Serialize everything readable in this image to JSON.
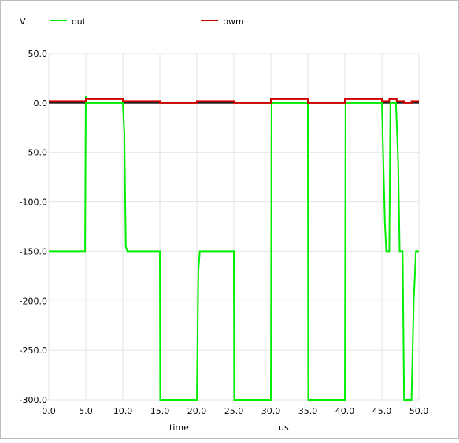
{
  "chart_data": {
    "type": "line",
    "ylabel": "V",
    "xlabel": "time",
    "xunit": "us",
    "xlim": [
      0,
      50
    ],
    "ylim": [
      -300,
      50
    ],
    "xticks": [
      "0.0",
      "5.0",
      "10.0",
      "15.0",
      "20.0",
      "25.0",
      "30.0",
      "35.0",
      "40.0",
      "45.0",
      "50.0"
    ],
    "yticks": [
      "50.0",
      "0.0",
      "-50.0",
      "-100.0",
      "-150.0",
      "-200.0",
      "-250.0",
      "-300.0"
    ],
    "grid": true,
    "legend_position": "top",
    "series": [
      {
        "name": "out",
        "color": "#00ee00",
        "points": [
          [
            0,
            -150
          ],
          [
            4.9,
            -150
          ],
          [
            5.0,
            7
          ],
          [
            5.1,
            0
          ],
          [
            10.0,
            0
          ],
          [
            10.2,
            -30
          ],
          [
            10.4,
            -145
          ],
          [
            10.6,
            -150
          ],
          [
            15.0,
            -150
          ],
          [
            15.05,
            -300
          ],
          [
            20.0,
            -300
          ],
          [
            20.2,
            -170
          ],
          [
            20.4,
            -150
          ],
          [
            25.0,
            -150
          ],
          [
            25.05,
            -300
          ],
          [
            30.0,
            -300
          ],
          [
            30.1,
            0
          ],
          [
            35.0,
            0
          ],
          [
            35.05,
            -300
          ],
          [
            40.0,
            -300
          ],
          [
            40.1,
            0
          ],
          [
            45.0,
            0
          ],
          [
            45.4,
            -120
          ],
          [
            45.6,
            -150
          ],
          [
            46.0,
            -150
          ],
          [
            46.15,
            0
          ],
          [
            46.9,
            0
          ],
          [
            47.2,
            -60
          ],
          [
            47.4,
            -150
          ],
          [
            47.8,
            -150
          ],
          [
            48.0,
            -300
          ],
          [
            49.0,
            -300
          ],
          [
            49.3,
            -200
          ],
          [
            49.6,
            -150
          ],
          [
            50.0,
            -150
          ]
        ]
      },
      {
        "name": "pwm",
        "color": "#cc0000",
        "points": [
          [
            0,
            2
          ],
          [
            5.0,
            2
          ],
          [
            5.0,
            4
          ],
          [
            10.0,
            4
          ],
          [
            10.0,
            2
          ],
          [
            15.0,
            2
          ],
          [
            15.0,
            0
          ],
          [
            20.0,
            0
          ],
          [
            20.0,
            2
          ],
          [
            25.0,
            2
          ],
          [
            25.0,
            0
          ],
          [
            30.0,
            0
          ],
          [
            30.0,
            4
          ],
          [
            35.0,
            4
          ],
          [
            35.0,
            0
          ],
          [
            40.0,
            0
          ],
          [
            40.0,
            4
          ],
          [
            45.0,
            4
          ],
          [
            45.0,
            2
          ],
          [
            46.0,
            2
          ],
          [
            46.0,
            4
          ],
          [
            47.0,
            4
          ],
          [
            47.0,
            2
          ],
          [
            48.0,
            2
          ],
          [
            48.0,
            0
          ],
          [
            49.0,
            0
          ],
          [
            49.0,
            2
          ],
          [
            50.0,
            2
          ]
        ]
      }
    ],
    "reference_lines": [
      {
        "y": 0,
        "color": "#000000"
      }
    ]
  }
}
